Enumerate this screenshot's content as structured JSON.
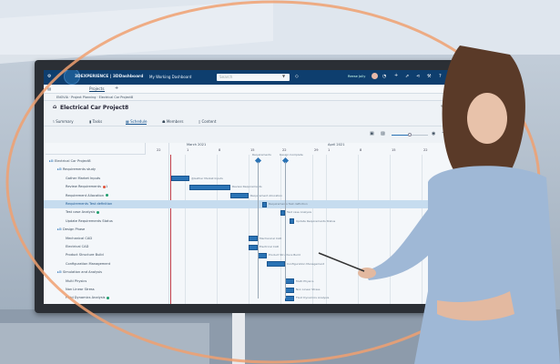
{
  "app": {
    "brand": "3DEXPERIENCE | 3DDashboard",
    "dashboard": "My Working Dashboard",
    "search_placeholder": "Search",
    "user": "Reese Jolly",
    "tab": "Projects"
  },
  "breadcrumb": "ENOVIA · Project Planning · Electrical Car Project8",
  "project_title": "Electrical Car Project8",
  "nav_tabs": [
    {
      "label": "Summary",
      "icon": "chart-icon"
    },
    {
      "label": "Tasks",
      "icon": "clipboard-icon"
    },
    {
      "label": "Schedule",
      "icon": "calendar-icon",
      "active": true
    },
    {
      "label": "Members",
      "icon": "people-icon"
    },
    {
      "label": "Content",
      "icon": "document-icon"
    }
  ],
  "timeline": {
    "months": [
      {
        "label": "March 2021",
        "date": "2021-03-01"
      },
      {
        "label": "April 2021",
        "date": "2021-04-01"
      }
    ],
    "ticks": [
      {
        "label": "22",
        "date": "2021-02-22"
      },
      {
        "label": "1",
        "date": "2021-03-01"
      },
      {
        "label": "8",
        "date": "2021-03-08"
      },
      {
        "label": "15",
        "date": "2021-03-15"
      },
      {
        "label": "22",
        "date": "2021-03-22"
      },
      {
        "label": "29",
        "date": "2021-03-29"
      },
      {
        "label": "1",
        "date": "2021-04-01"
      },
      {
        "label": "8",
        "date": "2021-04-08"
      },
      {
        "label": "15",
        "date": "2021-04-15"
      },
      {
        "label": "22",
        "date": "2021-04-22"
      },
      {
        "label": "29",
        "date": "2021-04-29"
      }
    ]
  },
  "milestones": [
    {
      "label": "Requirements",
      "date": "2021-03-17"
    },
    {
      "label": "Design Complete",
      "date": "2021-03-23"
    }
  ],
  "tasks": [
    {
      "name": "Electrical Car Project8",
      "level": 0,
      "group": true
    },
    {
      "name": "Requirements study",
      "level": 1,
      "group": true
    },
    {
      "name": "Gather Market Inputs",
      "level": 2,
      "start": "2021-02-26",
      "end": "2021-03-02",
      "bar_label": "@Gather Market Inputs"
    },
    {
      "name": "Review Requirements",
      "level": 2,
      "status": "#e0533a",
      "badge": "1",
      "start": "2021-03-02",
      "end": "2021-03-11",
      "bar_label": "Review Requirements"
    },
    {
      "name": "Requirement Allocation",
      "level": 2,
      "status": "#1f9e6e",
      "start": "2021-03-11",
      "end": "2021-03-15",
      "bar_label": "Requirement Allocation"
    },
    {
      "name": "Requirements Test definition",
      "level": 2,
      "selected": true,
      "start": "2021-03-18",
      "end": "2021-03-19",
      "bar_label": "Requirements Test definition"
    },
    {
      "name": "Test case Analysis",
      "level": 2,
      "status": "#1f9e6e",
      "start": "2021-03-22",
      "end": "2021-03-23",
      "bar_label": "Test case Analysis"
    },
    {
      "name": "Update Requirements Status",
      "level": 2,
      "start": "2021-03-24",
      "end": "2021-03-25",
      "bar_label": "Update Requirements Status"
    },
    {
      "name": "Design Phase",
      "level": 1,
      "group": true
    },
    {
      "name": "Mechanical CAD",
      "level": 2,
      "start": "2021-03-15",
      "end": "2021-03-17",
      "bar_label": "Mechanical CAD"
    },
    {
      "name": "Electrical CAD",
      "level": 2,
      "start": "2021-03-15",
      "end": "2021-03-17",
      "bar_label": "Electrical CAD"
    },
    {
      "name": "Product Structure Build",
      "level": 2,
      "start": "2021-03-17",
      "end": "2021-03-19",
      "bar_label": "Product Structure Build"
    },
    {
      "name": "Configuration Management",
      "level": 2,
      "start": "2021-03-19",
      "end": "2021-03-23",
      "bar_label": "Configuration Management"
    },
    {
      "name": "Simulation and Analysis",
      "level": 1,
      "group": true
    },
    {
      "name": "Multi Physics",
      "level": 2,
      "start": "2021-03-23",
      "end": "2021-03-25",
      "bar_label": "Multi Physics"
    },
    {
      "name": "Non Linear Stress",
      "level": 2,
      "start": "2021-03-23",
      "end": "2021-03-25",
      "bar_label": "Non Linear Stress"
    },
    {
      "name": "Fluid Dynamics Analysis",
      "level": 2,
      "status": "#1f9e6e",
      "start": "2021-03-23",
      "end": "2021-03-25",
      "bar_label": "Fluid Dynamics Analysis"
    }
  ],
  "colors": {
    "topbar": "#0e3e6e",
    "bar": "#2a73b5",
    "today_line": "#c0404a",
    "accent_ring": "#f0a070"
  }
}
